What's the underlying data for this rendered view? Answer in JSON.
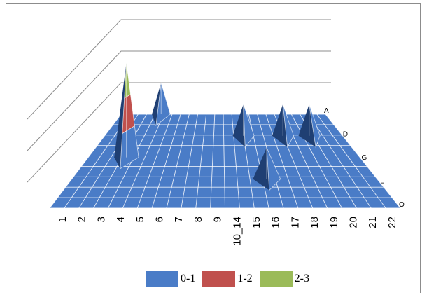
{
  "chart_data": {
    "type": "surface-3d",
    "title": "",
    "x_categories": [
      "1",
      "2",
      "3",
      "4",
      "5",
      "6",
      "7",
      "8",
      "9",
      "10_14",
      "15",
      "16",
      "17",
      "18",
      "19",
      "20",
      "21",
      "22"
    ],
    "series_axis": [
      "A",
      "D",
      "G",
      "L",
      "O"
    ],
    "z_range": [
      0,
      3
    ],
    "z_gridlines": [
      1,
      2,
      3
    ],
    "bands": [
      {
        "name": "0-1",
        "color": "#4a7cc7"
      },
      {
        "name": "1-2",
        "color": "#c0504d"
      },
      {
        "name": "2-3",
        "color": "#9bbb59"
      }
    ],
    "peaks": [
      {
        "x": "3",
        "series": "G",
        "value": 3
      },
      {
        "x": "4",
        "series": "A",
        "value": 1
      },
      {
        "x": "15",
        "series": "D",
        "value": 1
      },
      {
        "x": "16",
        "series": "L",
        "value": 1
      },
      {
        "x": "18",
        "series": "D",
        "value": 1
      },
      {
        "x": "20",
        "series": "D",
        "value": 1
      }
    ],
    "legend_position": "bottom",
    "grid": true
  }
}
